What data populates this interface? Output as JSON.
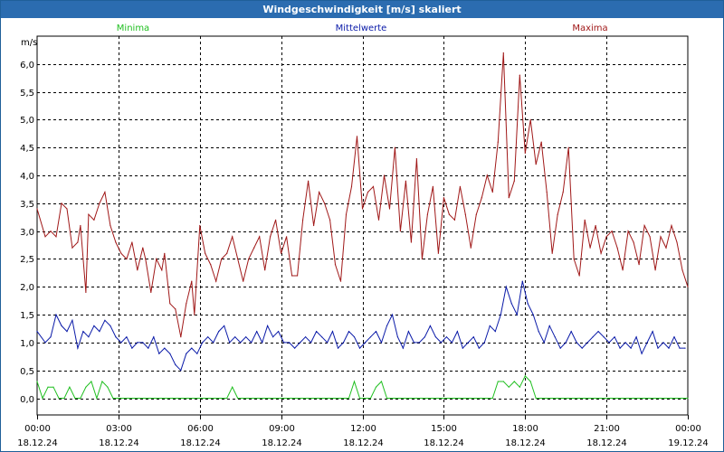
{
  "window": {
    "title": "Windgeschwindigkeit [m/s] skaliert"
  },
  "chart_data": {
    "type": "line",
    "title": "Windgeschwindigkeit [m/s] skaliert",
    "ylabel": "m/s",
    "xlabel": "",
    "ylim": [
      -0.3,
      6.5
    ],
    "y_ticks": [
      "0,0",
      "0,5",
      "1,0",
      "1,5",
      "2,0",
      "2,5",
      "3,0",
      "3,5",
      "4,0",
      "4,5",
      "5,0",
      "5,5",
      "6,0"
    ],
    "y_tick_values": [
      0,
      0.5,
      1,
      1.5,
      2,
      2.5,
      3,
      3.5,
      4,
      4.5,
      5,
      5.5,
      6
    ],
    "x_ticks": [
      {
        "time": "00:00",
        "date": "18.12.24",
        "hour": 0
      },
      {
        "time": "03:00",
        "date": "18.12.24",
        "hour": 3
      },
      {
        "time": "06:00",
        "date": "18.12.24",
        "hour": 6
      },
      {
        "time": "09:00",
        "date": "18.12.24",
        "hour": 9
      },
      {
        "time": "12:00",
        "date": "18.12.24",
        "hour": 12
      },
      {
        "time": "15:00",
        "date": "18.12.24",
        "hour": 15
      },
      {
        "time": "18:00",
        "date": "18.12.24",
        "hour": 18
      },
      {
        "time": "21:00",
        "date": "18.12.24",
        "hour": 21
      },
      {
        "time": "00:00",
        "date": "19.12.24",
        "hour": 24
      }
    ],
    "grid": true,
    "series": [
      {
        "name": "Maxima",
        "color": "#a01818",
        "points": [
          [
            0,
            3.4
          ],
          [
            0.3,
            2.9
          ],
          [
            0.5,
            3
          ],
          [
            0.7,
            2.9
          ],
          [
            0.9,
            3.5
          ],
          [
            1.1,
            3.4
          ],
          [
            1.3,
            2.7
          ],
          [
            1.5,
            2.8
          ],
          [
            1.6,
            3.1
          ],
          [
            1.8,
            1.9
          ],
          [
            1.9,
            3.3
          ],
          [
            2.1,
            3.2
          ],
          [
            2.3,
            3.5
          ],
          [
            2.5,
            3.7
          ],
          [
            2.7,
            3.1
          ],
          [
            2.9,
            2.8
          ],
          [
            3.1,
            2.6
          ],
          [
            3.3,
            2.5
          ],
          [
            3.5,
            2.8
          ],
          [
            3.7,
            2.3
          ],
          [
            3.9,
            2.7
          ],
          [
            4.0,
            2.5
          ],
          [
            4.2,
            1.9
          ],
          [
            4.4,
            2.5
          ],
          [
            4.6,
            2.3
          ],
          [
            4.7,
            2.6
          ],
          [
            4.9,
            1.7
          ],
          [
            5.1,
            1.6
          ],
          [
            5.3,
            1.1
          ],
          [
            5.5,
            1.7
          ],
          [
            5.7,
            2.1
          ],
          [
            5.8,
            1.5
          ],
          [
            6.0,
            3.1
          ],
          [
            6.2,
            2.6
          ],
          [
            6.4,
            2.4
          ],
          [
            6.6,
            2.1
          ],
          [
            6.8,
            2.5
          ],
          [
            7.0,
            2.6
          ],
          [
            7.2,
            2.9
          ],
          [
            7.4,
            2.5
          ],
          [
            7.6,
            2.1
          ],
          [
            7.8,
            2.5
          ],
          [
            8.0,
            2.7
          ],
          [
            8.2,
            2.9
          ],
          [
            8.4,
            2.3
          ],
          [
            8.6,
            2.9
          ],
          [
            8.8,
            3.2
          ],
          [
            9.0,
            2.6
          ],
          [
            9.2,
            2.9
          ],
          [
            9.4,
            2.2
          ],
          [
            9.6,
            2.2
          ],
          [
            9.8,
            3.2
          ],
          [
            10.0,
            3.9
          ],
          [
            10.2,
            3.1
          ],
          [
            10.4,
            3.7
          ],
          [
            10.6,
            3.5
          ],
          [
            10.8,
            3.2
          ],
          [
            11.0,
            2.4
          ],
          [
            11.2,
            2.1
          ],
          [
            11.4,
            3.3
          ],
          [
            11.6,
            3.8
          ],
          [
            11.8,
            4.7
          ],
          [
            12.0,
            3.4
          ],
          [
            12.2,
            3.7
          ],
          [
            12.4,
            3.8
          ],
          [
            12.6,
            3.2
          ],
          [
            12.8,
            4.0
          ],
          [
            13.0,
            3.4
          ],
          [
            13.2,
            4.5
          ],
          [
            13.4,
            3.0
          ],
          [
            13.6,
            3.9
          ],
          [
            13.8,
            2.8
          ],
          [
            14.0,
            4.3
          ],
          [
            14.2,
            2.5
          ],
          [
            14.4,
            3.3
          ],
          [
            14.6,
            3.8
          ],
          [
            14.8,
            2.6
          ],
          [
            15.0,
            3.6
          ],
          [
            15.2,
            3.3
          ],
          [
            15.4,
            3.2
          ],
          [
            15.6,
            3.8
          ],
          [
            15.8,
            3.3
          ],
          [
            16.0,
            2.7
          ],
          [
            16.2,
            3.3
          ],
          [
            16.4,
            3.6
          ],
          [
            16.6,
            4.0
          ],
          [
            16.8,
            3.7
          ],
          [
            17.0,
            4.6
          ],
          [
            17.2,
            6.2
          ],
          [
            17.4,
            3.6
          ],
          [
            17.6,
            3.9
          ],
          [
            17.8,
            5.8
          ],
          [
            18.0,
            4.4
          ],
          [
            18.2,
            5.0
          ],
          [
            18.4,
            4.2
          ],
          [
            18.6,
            4.6
          ],
          [
            18.8,
            3.7
          ],
          [
            19.0,
            2.6
          ],
          [
            19.2,
            3.3
          ],
          [
            19.4,
            3.7
          ],
          [
            19.6,
            4.5
          ],
          [
            19.8,
            2.5
          ],
          [
            20.0,
            2.2
          ],
          [
            20.2,
            3.2
          ],
          [
            20.4,
            2.7
          ],
          [
            20.6,
            3.1
          ],
          [
            20.8,
            2.6
          ],
          [
            21.0,
            2.9
          ],
          [
            21.2,
            3.0
          ],
          [
            21.4,
            2.7
          ],
          [
            21.6,
            2.3
          ],
          [
            21.8,
            3.0
          ],
          [
            22.0,
            2.8
          ],
          [
            22.2,
            2.4
          ],
          [
            22.4,
            3.1
          ],
          [
            22.6,
            2.9
          ],
          [
            22.8,
            2.3
          ],
          [
            23.0,
            2.9
          ],
          [
            23.2,
            2.7
          ],
          [
            23.4,
            3.1
          ],
          [
            23.6,
            2.8
          ],
          [
            23.8,
            2.3
          ],
          [
            24.0,
            2.0
          ]
        ]
      },
      {
        "name": "Mittelwerte",
        "color": "#0a1aa8",
        "points": [
          [
            0,
            1.2
          ],
          [
            0.3,
            1.0
          ],
          [
            0.5,
            1.1
          ],
          [
            0.7,
            1.5
          ],
          [
            0.9,
            1.3
          ],
          [
            1.1,
            1.2
          ],
          [
            1.3,
            1.4
          ],
          [
            1.5,
            0.9
          ],
          [
            1.7,
            1.2
          ],
          [
            1.9,
            1.1
          ],
          [
            2.1,
            1.3
          ],
          [
            2.3,
            1.2
          ],
          [
            2.5,
            1.4
          ],
          [
            2.7,
            1.3
          ],
          [
            2.9,
            1.1
          ],
          [
            3.1,
            1.0
          ],
          [
            3.3,
            1.1
          ],
          [
            3.5,
            0.9
          ],
          [
            3.7,
            1.0
          ],
          [
            3.9,
            1.0
          ],
          [
            4.1,
            0.9
          ],
          [
            4.3,
            1.1
          ],
          [
            4.5,
            0.8
          ],
          [
            4.7,
            0.9
          ],
          [
            4.9,
            0.8
          ],
          [
            5.1,
            0.6
          ],
          [
            5.3,
            0.5
          ],
          [
            5.5,
            0.8
          ],
          [
            5.7,
            0.9
          ],
          [
            5.9,
            0.8
          ],
          [
            6.1,
            1.0
          ],
          [
            6.3,
            1.1
          ],
          [
            6.5,
            1.0
          ],
          [
            6.7,
            1.2
          ],
          [
            6.9,
            1.3
          ],
          [
            7.1,
            1.0
          ],
          [
            7.3,
            1.1
          ],
          [
            7.5,
            1.0
          ],
          [
            7.7,
            1.1
          ],
          [
            7.9,
            1.0
          ],
          [
            8.1,
            1.2
          ],
          [
            8.3,
            1.0
          ],
          [
            8.5,
            1.3
          ],
          [
            8.7,
            1.1
          ],
          [
            8.9,
            1.2
          ],
          [
            9.1,
            1.0
          ],
          [
            9.3,
            1.0
          ],
          [
            9.5,
            0.9
          ],
          [
            9.7,
            1.0
          ],
          [
            9.9,
            1.1
          ],
          [
            10.1,
            1.0
          ],
          [
            10.3,
            1.2
          ],
          [
            10.5,
            1.1
          ],
          [
            10.7,
            1.0
          ],
          [
            10.9,
            1.2
          ],
          [
            11.1,
            0.9
          ],
          [
            11.3,
            1.0
          ],
          [
            11.5,
            1.2
          ],
          [
            11.7,
            1.1
          ],
          [
            11.9,
            0.9
          ],
          [
            12.1,
            1.0
          ],
          [
            12.3,
            1.1
          ],
          [
            12.5,
            1.2
          ],
          [
            12.7,
            1.0
          ],
          [
            12.9,
            1.3
          ],
          [
            13.1,
            1.5
          ],
          [
            13.3,
            1.1
          ],
          [
            13.5,
            0.9
          ],
          [
            13.7,
            1.2
          ],
          [
            13.9,
            1.0
          ],
          [
            14.1,
            1.0
          ],
          [
            14.3,
            1.1
          ],
          [
            14.5,
            1.3
          ],
          [
            14.7,
            1.1
          ],
          [
            14.9,
            1.0
          ],
          [
            15.1,
            1.1
          ],
          [
            15.3,
            1.0
          ],
          [
            15.5,
            1.2
          ],
          [
            15.7,
            0.9
          ],
          [
            15.9,
            1.0
          ],
          [
            16.1,
            1.1
          ],
          [
            16.3,
            0.9
          ],
          [
            16.5,
            1.0
          ],
          [
            16.7,
            1.3
          ],
          [
            16.9,
            1.2
          ],
          [
            17.1,
            1.5
          ],
          [
            17.3,
            2.0
          ],
          [
            17.5,
            1.7
          ],
          [
            17.7,
            1.5
          ],
          [
            17.9,
            2.1
          ],
          [
            18.1,
            1.7
          ],
          [
            18.3,
            1.5
          ],
          [
            18.5,
            1.2
          ],
          [
            18.7,
            1.0
          ],
          [
            18.9,
            1.3
          ],
          [
            19.1,
            1.1
          ],
          [
            19.3,
            0.9
          ],
          [
            19.5,
            1.0
          ],
          [
            19.7,
            1.2
          ],
          [
            19.9,
            1.0
          ],
          [
            20.1,
            0.9
          ],
          [
            20.3,
            1.0
          ],
          [
            20.5,
            1.1
          ],
          [
            20.7,
            1.2
          ],
          [
            20.9,
            1.1
          ],
          [
            21.1,
            1.0
          ],
          [
            21.3,
            1.1
          ],
          [
            21.5,
            0.9
          ],
          [
            21.7,
            1.0
          ],
          [
            21.9,
            0.9
          ],
          [
            22.1,
            1.1
          ],
          [
            22.3,
            0.8
          ],
          [
            22.5,
            1.0
          ],
          [
            22.7,
            1.2
          ],
          [
            22.9,
            0.9
          ],
          [
            23.1,
            1.0
          ],
          [
            23.3,
            0.9
          ],
          [
            23.5,
            1.1
          ],
          [
            23.7,
            0.9
          ],
          [
            23.9,
            0.9
          ]
        ]
      },
      {
        "name": "Minima",
        "color": "#1fbf1f",
        "points": [
          [
            0,
            0.3
          ],
          [
            0.2,
            0.0
          ],
          [
            0.4,
            0.2
          ],
          [
            0.6,
            0.2
          ],
          [
            0.8,
            0.0
          ],
          [
            1.0,
            0.0
          ],
          [
            1.2,
            0.2
          ],
          [
            1.4,
            0.0
          ],
          [
            1.6,
            0.0
          ],
          [
            1.8,
            0.2
          ],
          [
            2.0,
            0.3
          ],
          [
            2.2,
            0.0
          ],
          [
            2.4,
            0.3
          ],
          [
            2.6,
            0.2
          ],
          [
            2.8,
            0.0
          ],
          [
            3.0,
            0.0
          ],
          [
            5.0,
            0.0
          ],
          [
            7.0,
            0.0
          ],
          [
            7.2,
            0.2
          ],
          [
            7.4,
            0.0
          ],
          [
            9.0,
            0.0
          ],
          [
            11.5,
            0.0
          ],
          [
            11.7,
            0.3
          ],
          [
            11.9,
            0.0
          ],
          [
            12.3,
            0.0
          ],
          [
            12.5,
            0.2
          ],
          [
            12.7,
            0.3
          ],
          [
            12.9,
            0.0
          ],
          [
            14.0,
            0.0
          ],
          [
            16.8,
            0.0
          ],
          [
            17.0,
            0.3
          ],
          [
            17.2,
            0.3
          ],
          [
            17.4,
            0.2
          ],
          [
            17.6,
            0.3
          ],
          [
            17.8,
            0.2
          ],
          [
            18.0,
            0.4
          ],
          [
            18.2,
            0.3
          ],
          [
            18.4,
            0.0
          ],
          [
            20.0,
            0.0
          ],
          [
            22.0,
            0.0
          ],
          [
            24.0,
            0.0
          ]
        ]
      }
    ]
  }
}
